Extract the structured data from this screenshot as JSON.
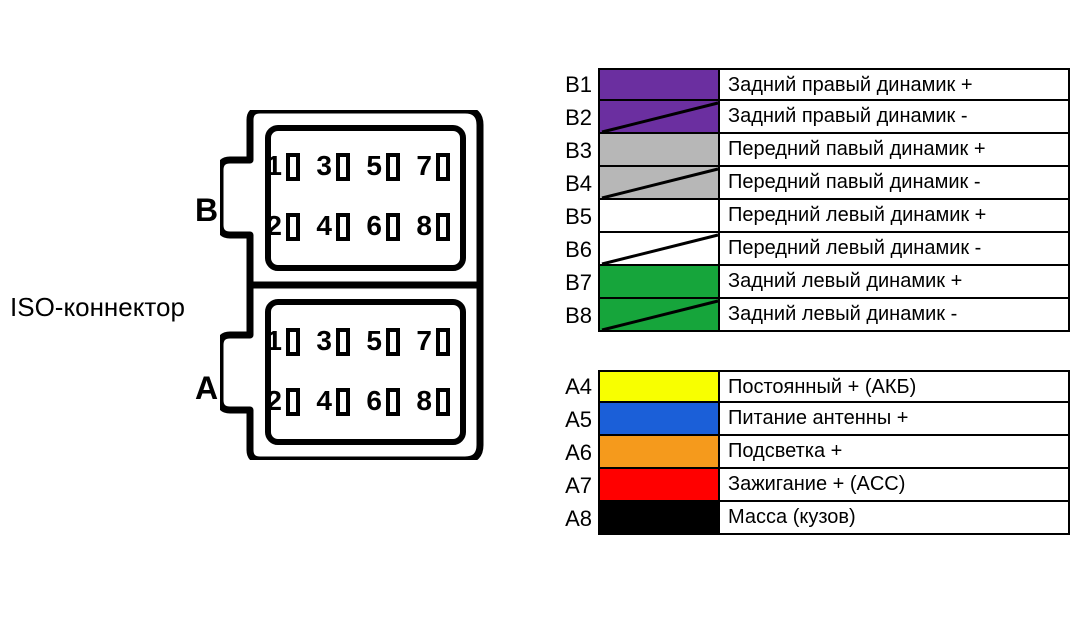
{
  "title_label": "ISO-коннектор",
  "side_labels": {
    "b": "B",
    "a": "A"
  },
  "connector": {
    "outline_color": "#000000",
    "outline_width": 7,
    "pin_label_font_size": 28,
    "pins_top": [
      "1",
      "3",
      "5",
      "7"
    ],
    "pins_bottom": [
      "2",
      "4",
      "6",
      "8"
    ]
  },
  "legend_b": [
    {
      "pin": "B1",
      "color": "#6b2fa0",
      "stripe": false,
      "desc": "Задний правый динамик +"
    },
    {
      "pin": "B2",
      "color": "#6b2fa0",
      "stripe": true,
      "desc": "Задний правый динамик -"
    },
    {
      "pin": "B3",
      "color": "#b7b7b7",
      "stripe": false,
      "desc": "Передний павый динамик +"
    },
    {
      "pin": "B4",
      "color": "#b7b7b7",
      "stripe": true,
      "desc": "Передний павый динамик -"
    },
    {
      "pin": "B5",
      "color": "#ffffff",
      "stripe": false,
      "desc": "Передний левый динамик +"
    },
    {
      "pin": "B6",
      "color": "#ffffff",
      "stripe": true,
      "desc": "Передний левый динамик -"
    },
    {
      "pin": "B7",
      "color": "#16a53b",
      "stripe": false,
      "desc": "Задний левый динамик +"
    },
    {
      "pin": "B8",
      "color": "#16a53b",
      "stripe": true,
      "desc": "Задний левый динамик -"
    }
  ],
  "legend_a": [
    {
      "pin": "A4",
      "color": "#f8ff00",
      "stripe": false,
      "desc": "Постоянный + (АКБ)"
    },
    {
      "pin": "A5",
      "color": "#1b5fd8",
      "stripe": false,
      "desc": "Питание антенны +"
    },
    {
      "pin": "A6",
      "color": "#f59a1c",
      "stripe": false,
      "desc": "Подсветка +"
    },
    {
      "pin": "A7",
      "color": "#ff0000",
      "stripe": false,
      "desc": "Зажигание + (ACC)"
    },
    {
      "pin": "A8",
      "color": "#000000",
      "stripe": false,
      "desc": "Масса (кузов)"
    }
  ],
  "stripe_color": "#000000",
  "stripe_width": 3
}
